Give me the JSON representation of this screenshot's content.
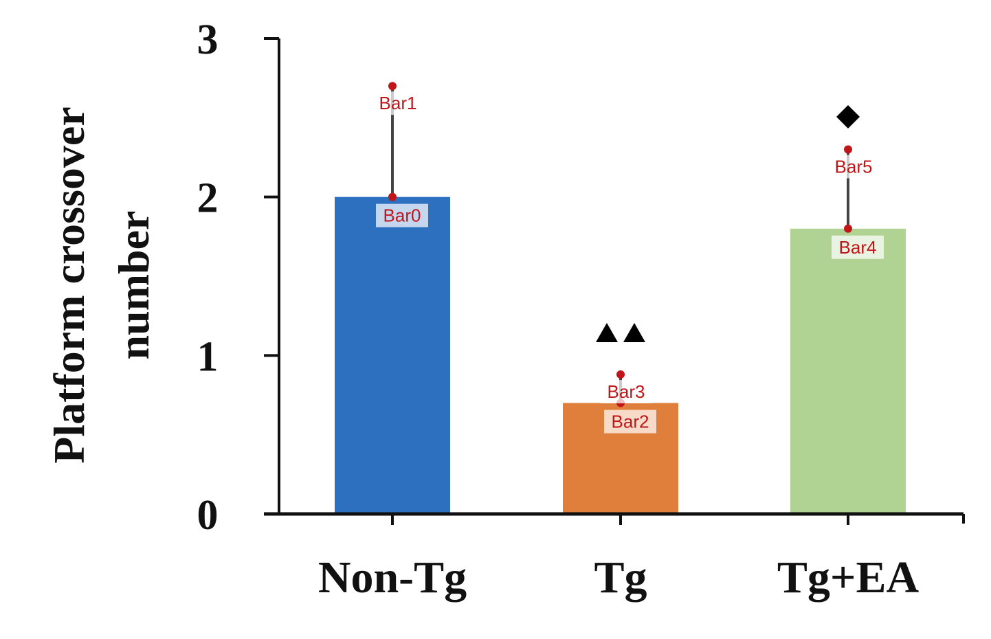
{
  "chart_data": {
    "type": "bar",
    "categories": [
      "Non-Tg",
      "Tg",
      "Tg+EA"
    ],
    "values": [
      2.0,
      0.7,
      1.8
    ],
    "errors": [
      0.7,
      0.18,
      0.5
    ],
    "colors": [
      "#2e70c0",
      "#e07f3c",
      "#b0d393"
    ],
    "ylabel": [
      "Platform crossover",
      "number"
    ],
    "xlabel": "",
    "title": "",
    "ylim": [
      0,
      3
    ],
    "yticks": [
      0,
      1,
      2,
      3
    ],
    "significance": [
      "",
      "▲▲",
      "◆"
    ],
    "annotations": [
      {
        "label": "Bar0",
        "bar": 0,
        "value": 2.0
      },
      {
        "label": "Bar1",
        "bar": 0,
        "value": 2.7
      },
      {
        "label": "Bar2",
        "bar": 1,
        "value": 0.7
      },
      {
        "label": "Bar3",
        "bar": 1,
        "value": 0.88
      },
      {
        "label": "Bar4",
        "bar": 2,
        "value": 1.8
      },
      {
        "label": "Bar5",
        "bar": 2,
        "value": 2.3
      }
    ],
    "grid": false,
    "legend": "none"
  }
}
